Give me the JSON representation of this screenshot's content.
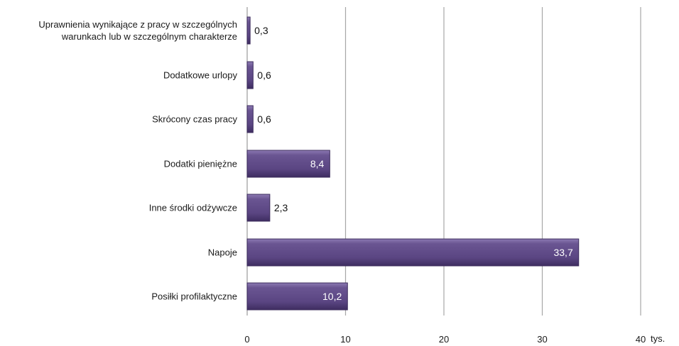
{
  "chart_data": {
    "type": "bar",
    "orientation": "horizontal",
    "categories": [
      "Uprawnienia wynikające z pracy w szczególnych warunkach lub w szczególnym charakterze",
      "Dodatkowe urlopy",
      "Skrócony czas pracy",
      "Dodatki pieniężne",
      "Inne środki odżywcze",
      "Napoje",
      "Posiłki profilaktyczne"
    ],
    "category_label_lines": [
      [
        "Uprawnienia wynikające z pracy w szczególnych",
        "warunkach lub w szczególnym charakterze"
      ],
      [
        "Dodatkowe urlopy"
      ],
      [
        "Skrócony czas pracy"
      ],
      [
        "Dodatki pieniężne"
      ],
      [
        "Inne środki odżywcze"
      ],
      [
        "Napoje"
      ],
      [
        "Posiłki profilaktyczne"
      ]
    ],
    "values": [
      0.3,
      0.6,
      0.6,
      8.4,
      2.3,
      33.7,
      10.2
    ],
    "value_labels": [
      "0,3",
      "0,6",
      "0,6",
      "8,4",
      "2,3",
      "33,7",
      "10,2"
    ],
    "xlim": [
      0,
      40
    ],
    "xticks": [
      0,
      10,
      20,
      30,
      40
    ],
    "xtick_labels": [
      "0",
      "10",
      "20",
      "30",
      "40"
    ],
    "xunit": "tys.",
    "grid": "vertical",
    "bar_color": "#5f4a87",
    "bar_edge_color": "#3c2c5c",
    "label_inside_color": "#ffffff",
    "label_outside_color": "#111111"
  }
}
